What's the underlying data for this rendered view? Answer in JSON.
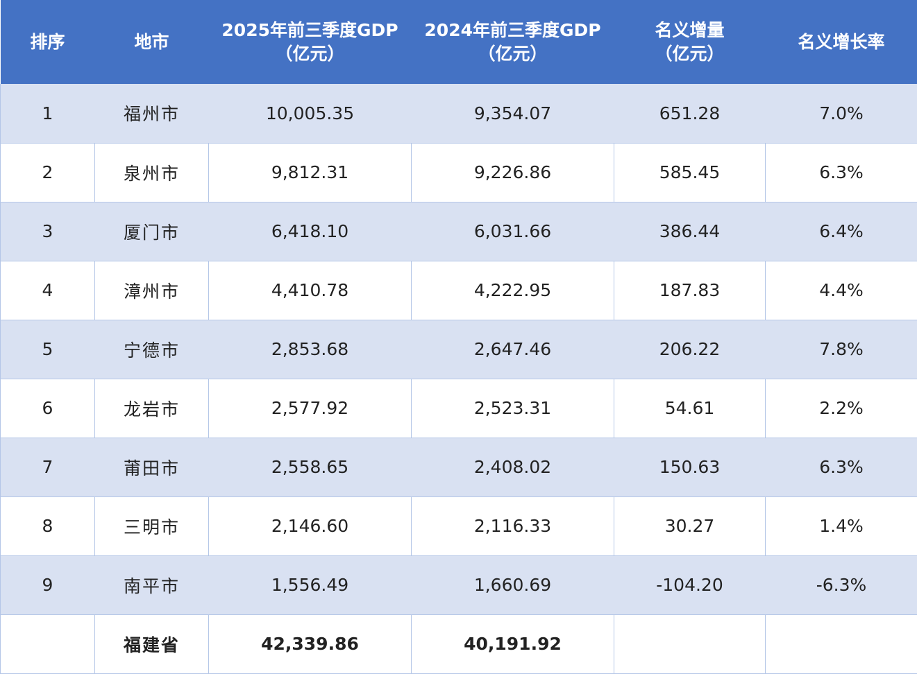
{
  "colors": {
    "header_bg": "#4472c4",
    "header_text": "#ffffff",
    "band_row": "#d9e1f2",
    "plain_row": "#ffffff",
    "grid_line": "#b4c6e7"
  },
  "header": {
    "rank": "排序",
    "city": "地市",
    "gdp_2025": {
      "line1": "2025年前三季度GDP",
      "line2": "（亿元）"
    },
    "gdp_2024": {
      "line1": "2024年前三季度GDP",
      "line2": "（亿元）"
    },
    "increase": {
      "line1": "名义增量",
      "line2": "（亿元）"
    },
    "growth_rate": "名义增长率"
  },
  "rows": [
    {
      "rank": "1",
      "city": "福州市",
      "gdp_2025": "10,005.35",
      "gdp_2024": "9,354.07",
      "increase": "651.28",
      "growth": "7.0%"
    },
    {
      "rank": "2",
      "city": "泉州市",
      "gdp_2025": "9,812.31",
      "gdp_2024": "9,226.86",
      "increase": "585.45",
      "growth": "6.3%"
    },
    {
      "rank": "3",
      "city": "厦门市",
      "gdp_2025": "6,418.10",
      "gdp_2024": "6,031.66",
      "increase": "386.44",
      "growth": "6.4%"
    },
    {
      "rank": "4",
      "city": "漳州市",
      "gdp_2025": "4,410.78",
      "gdp_2024": "4,222.95",
      "increase": "187.83",
      "growth": "4.4%"
    },
    {
      "rank": "5",
      "city": "宁德市",
      "gdp_2025": "2,853.68",
      "gdp_2024": "2,647.46",
      "increase": "206.22",
      "growth": "7.8%"
    },
    {
      "rank": "6",
      "city": "龙岩市",
      "gdp_2025": "2,577.92",
      "gdp_2024": "2,523.31",
      "increase": "54.61",
      "growth": "2.2%"
    },
    {
      "rank": "7",
      "city": "莆田市",
      "gdp_2025": "2,558.65",
      "gdp_2024": "2,408.02",
      "increase": "150.63",
      "growth": "6.3%"
    },
    {
      "rank": "8",
      "city": "三明市",
      "gdp_2025": "2,146.60",
      "gdp_2024": "2,116.33",
      "increase": "30.27",
      "growth": "1.4%"
    },
    {
      "rank": "9",
      "city": "南平市",
      "gdp_2025": "1,556.49",
      "gdp_2024": "1,660.69",
      "increase": "-104.20",
      "growth": "-6.3%"
    }
  ],
  "total": {
    "rank": "",
    "city": "福建省",
    "gdp_2025": "42,339.86",
    "gdp_2024": "40,191.92",
    "increase": "",
    "growth": ""
  }
}
